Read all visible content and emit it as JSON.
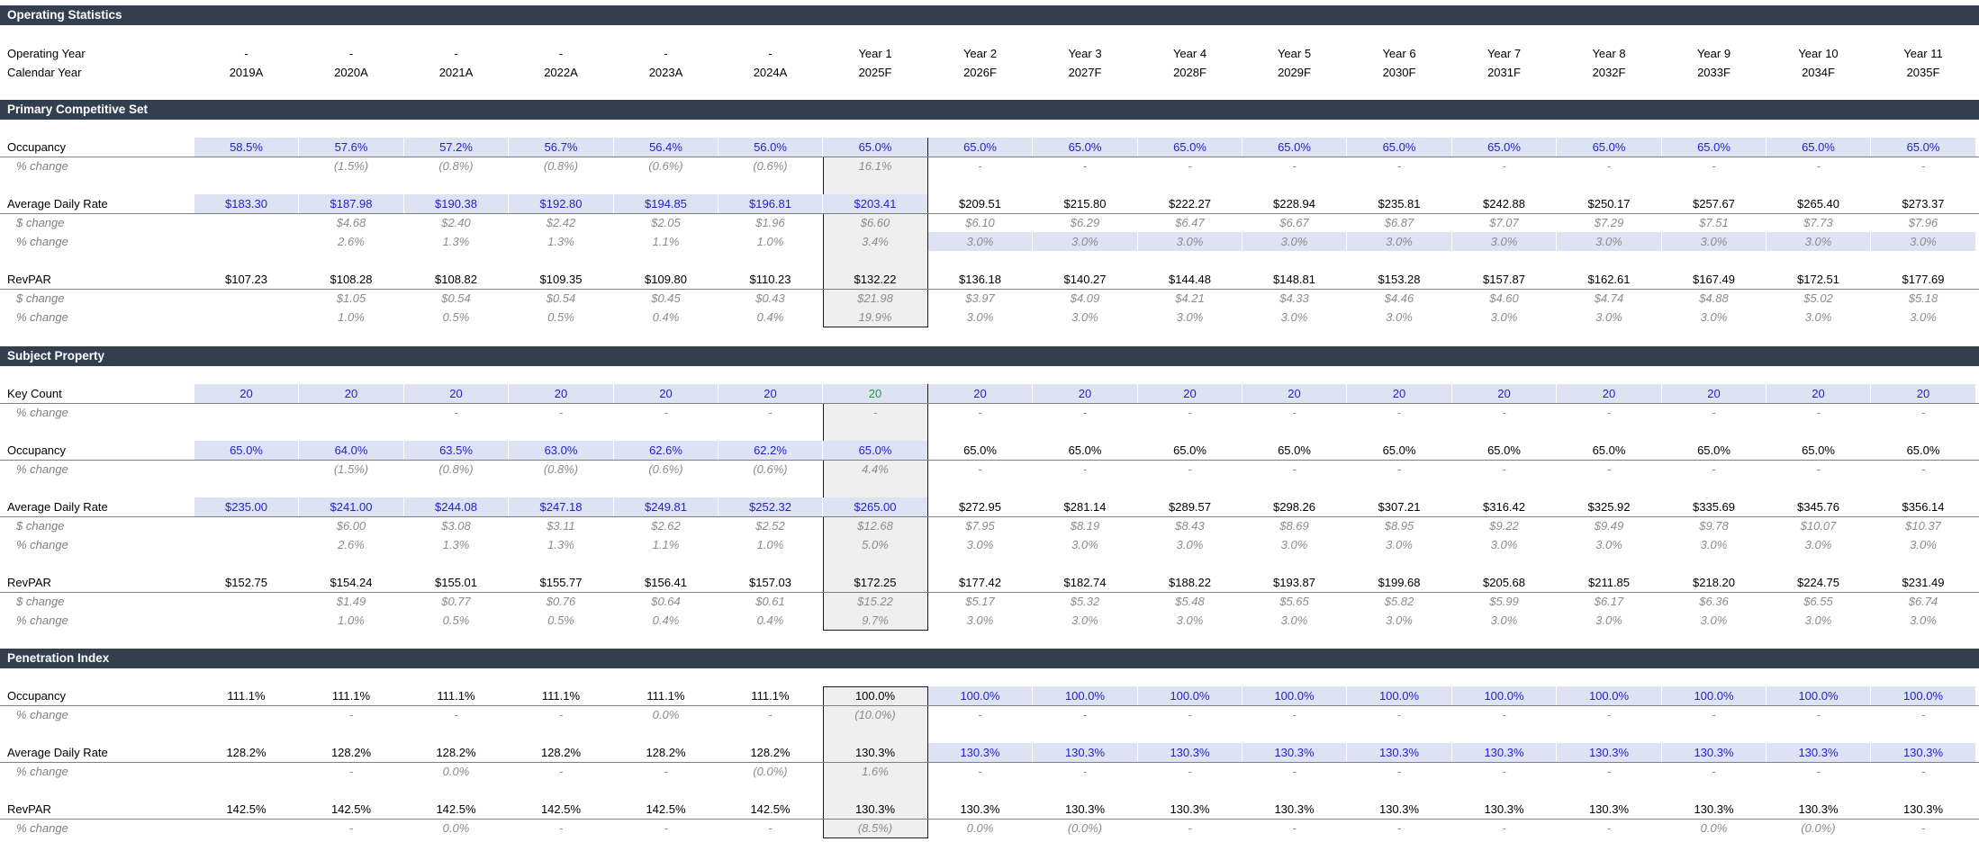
{
  "sections": {
    "operating_statistics": "Operating Statistics",
    "primary_competitive_set": "Primary Competitive Set",
    "subject_property": "Subject Property",
    "penetration_index": "Penetration Index"
  },
  "header_rows": [
    {
      "label": "Operating Year",
      "cells": [
        "-",
        "-",
        "-",
        "-",
        "-",
        "-",
        "Year 1",
        "Year 2",
        "Year 3",
        "Year 4",
        "Year 5",
        "Year 6",
        "Year 7",
        "Year 8",
        "Year 9",
        "Year 10",
        "Year 11"
      ]
    },
    {
      "label": "Calendar Year",
      "cells": [
        "2019A",
        "2020A",
        "2021A",
        "2022A",
        "2023A",
        "2024A",
        "2025F",
        "2026F",
        "2027F",
        "2028F",
        "2029F",
        "2030F",
        "2031F",
        "2032F",
        "2033F",
        "2034F",
        "2035F"
      ]
    }
  ],
  "comp_set_rows": [
    {
      "label": "Occupancy",
      "cells": [
        "58.5%",
        "57.6%",
        "57.2%",
        "56.7%",
        "56.4%",
        "56.0%",
        "65.0%",
        "65.0%",
        "65.0%",
        "65.0%",
        "65.0%",
        "65.0%",
        "65.0%",
        "65.0%",
        "65.0%",
        "65.0%",
        "65.0%"
      ]
    },
    {
      "label": "% change",
      "cells": [
        "",
        "(1.5%)",
        "(0.8%)",
        "(0.8%)",
        "(0.6%)",
        "(0.6%)",
        "16.1%",
        "-",
        "-",
        "-",
        "-",
        "-",
        "-",
        "-",
        "-",
        "-",
        "-"
      ]
    },
    {
      "label": "Average Daily Rate",
      "cells": [
        "$183.30",
        "$187.98",
        "$190.38",
        "$192.80",
        "$194.85",
        "$196.81",
        "$203.41",
        "$209.51",
        "$215.80",
        "$222.27",
        "$228.94",
        "$235.81",
        "$242.88",
        "$250.17",
        "$257.67",
        "$265.40",
        "$273.37"
      ]
    },
    {
      "label": "$ change",
      "cells": [
        "",
        "$4.68",
        "$2.40",
        "$2.42",
        "$2.05",
        "$1.96",
        "$6.60",
        "$6.10",
        "$6.29",
        "$6.47",
        "$6.67",
        "$6.87",
        "$7.07",
        "$7.29",
        "$7.51",
        "$7.73",
        "$7.96"
      ]
    },
    {
      "label": "% change",
      "cells": [
        "",
        "2.6%",
        "1.3%",
        "1.3%",
        "1.1%",
        "1.0%",
        "3.4%",
        "3.0%",
        "3.0%",
        "3.0%",
        "3.0%",
        "3.0%",
        "3.0%",
        "3.0%",
        "3.0%",
        "3.0%",
        "3.0%"
      ]
    },
    {
      "label": "RevPAR",
      "cells": [
        "$107.23",
        "$108.28",
        "$108.82",
        "$109.35",
        "$109.80",
        "$110.23",
        "$132.22",
        "$136.18",
        "$140.27",
        "$144.48",
        "$148.81",
        "$153.28",
        "$157.87",
        "$162.61",
        "$167.49",
        "$172.51",
        "$177.69"
      ]
    },
    {
      "label": "$ change",
      "cells": [
        "",
        "$1.05",
        "$0.54",
        "$0.54",
        "$0.45",
        "$0.43",
        "$21.98",
        "$3.97",
        "$4.09",
        "$4.21",
        "$4.33",
        "$4.46",
        "$4.60",
        "$4.74",
        "$4.88",
        "$5.02",
        "$5.18"
      ]
    },
    {
      "label": "% change",
      "cells": [
        "",
        "1.0%",
        "0.5%",
        "0.5%",
        "0.4%",
        "0.4%",
        "19.9%",
        "3.0%",
        "3.0%",
        "3.0%",
        "3.0%",
        "3.0%",
        "3.0%",
        "3.0%",
        "3.0%",
        "3.0%",
        "3.0%"
      ]
    }
  ],
  "subject_rows": [
    {
      "label": "Key Count",
      "cells": [
        "20",
        "20",
        "20",
        "20",
        "20",
        "20",
        "20",
        "20",
        "20",
        "20",
        "20",
        "20",
        "20",
        "20",
        "20",
        "20",
        "20"
      ]
    },
    {
      "label": "% change",
      "cells": [
        "",
        "",
        "-",
        "-",
        "-",
        "-",
        "-",
        "-",
        "-",
        "-",
        "-",
        "-",
        "-",
        "-",
        "-",
        "-",
        "-"
      ]
    },
    {
      "label": "Occupancy",
      "cells": [
        "65.0%",
        "64.0%",
        "63.5%",
        "63.0%",
        "62.6%",
        "62.2%",
        "65.0%",
        "65.0%",
        "65.0%",
        "65.0%",
        "65.0%",
        "65.0%",
        "65.0%",
        "65.0%",
        "65.0%",
        "65.0%",
        "65.0%"
      ]
    },
    {
      "label": "% change",
      "cells": [
        "",
        "(1.5%)",
        "(0.8%)",
        "(0.8%)",
        "(0.6%)",
        "(0.6%)",
        "4.4%",
        "-",
        "-",
        "-",
        "-",
        "-",
        "-",
        "-",
        "-",
        "-",
        "-"
      ]
    },
    {
      "label": "Average Daily Rate",
      "cells": [
        "$235.00",
        "$241.00",
        "$244.08",
        "$247.18",
        "$249.81",
        "$252.32",
        "$265.00",
        "$272.95",
        "$281.14",
        "$289.57",
        "$298.26",
        "$307.21",
        "$316.42",
        "$325.92",
        "$335.69",
        "$345.76",
        "$356.14"
      ]
    },
    {
      "label": "$ change",
      "cells": [
        "",
        "$6.00",
        "$3.08",
        "$3.11",
        "$2.62",
        "$2.52",
        "$12.68",
        "$7.95",
        "$8.19",
        "$8.43",
        "$8.69",
        "$8.95",
        "$9.22",
        "$9.49",
        "$9.78",
        "$10.07",
        "$10.37"
      ]
    },
    {
      "label": "% change",
      "cells": [
        "",
        "2.6%",
        "1.3%",
        "1.3%",
        "1.1%",
        "1.0%",
        "5.0%",
        "3.0%",
        "3.0%",
        "3.0%",
        "3.0%",
        "3.0%",
        "3.0%",
        "3.0%",
        "3.0%",
        "3.0%",
        "3.0%"
      ]
    },
    {
      "label": "RevPAR",
      "cells": [
        "$152.75",
        "$154.24",
        "$155.01",
        "$155.77",
        "$156.41",
        "$157.03",
        "$172.25",
        "$177.42",
        "$182.74",
        "$188.22",
        "$193.87",
        "$199.68",
        "$205.68",
        "$211.85",
        "$218.20",
        "$224.75",
        "$231.49"
      ]
    },
    {
      "label": "$ change",
      "cells": [
        "",
        "$1.49",
        "$0.77",
        "$0.76",
        "$0.64",
        "$0.61",
        "$15.22",
        "$5.17",
        "$5.32",
        "$5.48",
        "$5.65",
        "$5.82",
        "$5.99",
        "$6.17",
        "$6.36",
        "$6.55",
        "$6.74"
      ]
    },
    {
      "label": "% change",
      "cells": [
        "",
        "1.0%",
        "0.5%",
        "0.5%",
        "0.4%",
        "0.4%",
        "9.7%",
        "3.0%",
        "3.0%",
        "3.0%",
        "3.0%",
        "3.0%",
        "3.0%",
        "3.0%",
        "3.0%",
        "3.0%",
        "3.0%"
      ]
    }
  ],
  "penetration_rows": [
    {
      "label": "Occupancy",
      "cells": [
        "111.1%",
        "111.1%",
        "111.1%",
        "111.1%",
        "111.1%",
        "111.1%",
        "100.0%",
        "100.0%",
        "100.0%",
        "100.0%",
        "100.0%",
        "100.0%",
        "100.0%",
        "100.0%",
        "100.0%",
        "100.0%",
        "100.0%"
      ]
    },
    {
      "label": "% change",
      "cells": [
        "",
        "-",
        "-",
        "-",
        "0.0%",
        "-",
        "(10.0%)",
        "-",
        "-",
        "-",
        "-",
        "-",
        "-",
        "-",
        "-",
        "-",
        "-"
      ]
    },
    {
      "label": "Average Daily Rate",
      "cells": [
        "128.2%",
        "128.2%",
        "128.2%",
        "128.2%",
        "128.2%",
        "128.2%",
        "130.3%",
        "130.3%",
        "130.3%",
        "130.3%",
        "130.3%",
        "130.3%",
        "130.3%",
        "130.3%",
        "130.3%",
        "130.3%",
        "130.3%"
      ]
    },
    {
      "label": "% change",
      "cells": [
        "",
        "-",
        "0.0%",
        "-",
        "-",
        "(0.0%)",
        "1.6%",
        "-",
        "-",
        "-",
        "-",
        "-",
        "-",
        "-",
        "-",
        "-",
        "-"
      ]
    },
    {
      "label": "RevPAR",
      "cells": [
        "142.5%",
        "142.5%",
        "142.5%",
        "142.5%",
        "142.5%",
        "142.5%",
        "130.3%",
        "130.3%",
        "130.3%",
        "130.3%",
        "130.3%",
        "130.3%",
        "130.3%",
        "130.3%",
        "130.3%",
        "130.3%",
        "130.3%"
      ]
    },
    {
      "label": "% change",
      "cells": [
        "",
        "-",
        "0.0%",
        "-",
        "-",
        "-",
        "(8.5%)",
        "0.0%",
        "(0.0%)",
        "-",
        "-",
        "-",
        "-",
        "-",
        "0.0%",
        "(0.0%)",
        "-"
      ]
    }
  ],
  "colors": {
    "section_header_bg": "#333f4f",
    "input_fill": "#dde3f3",
    "input_text": "#1f1fcf",
    "sub_text": "#8c8c8c",
    "year1_fill": "#efefef",
    "green_text": "#1b9e3a"
  }
}
